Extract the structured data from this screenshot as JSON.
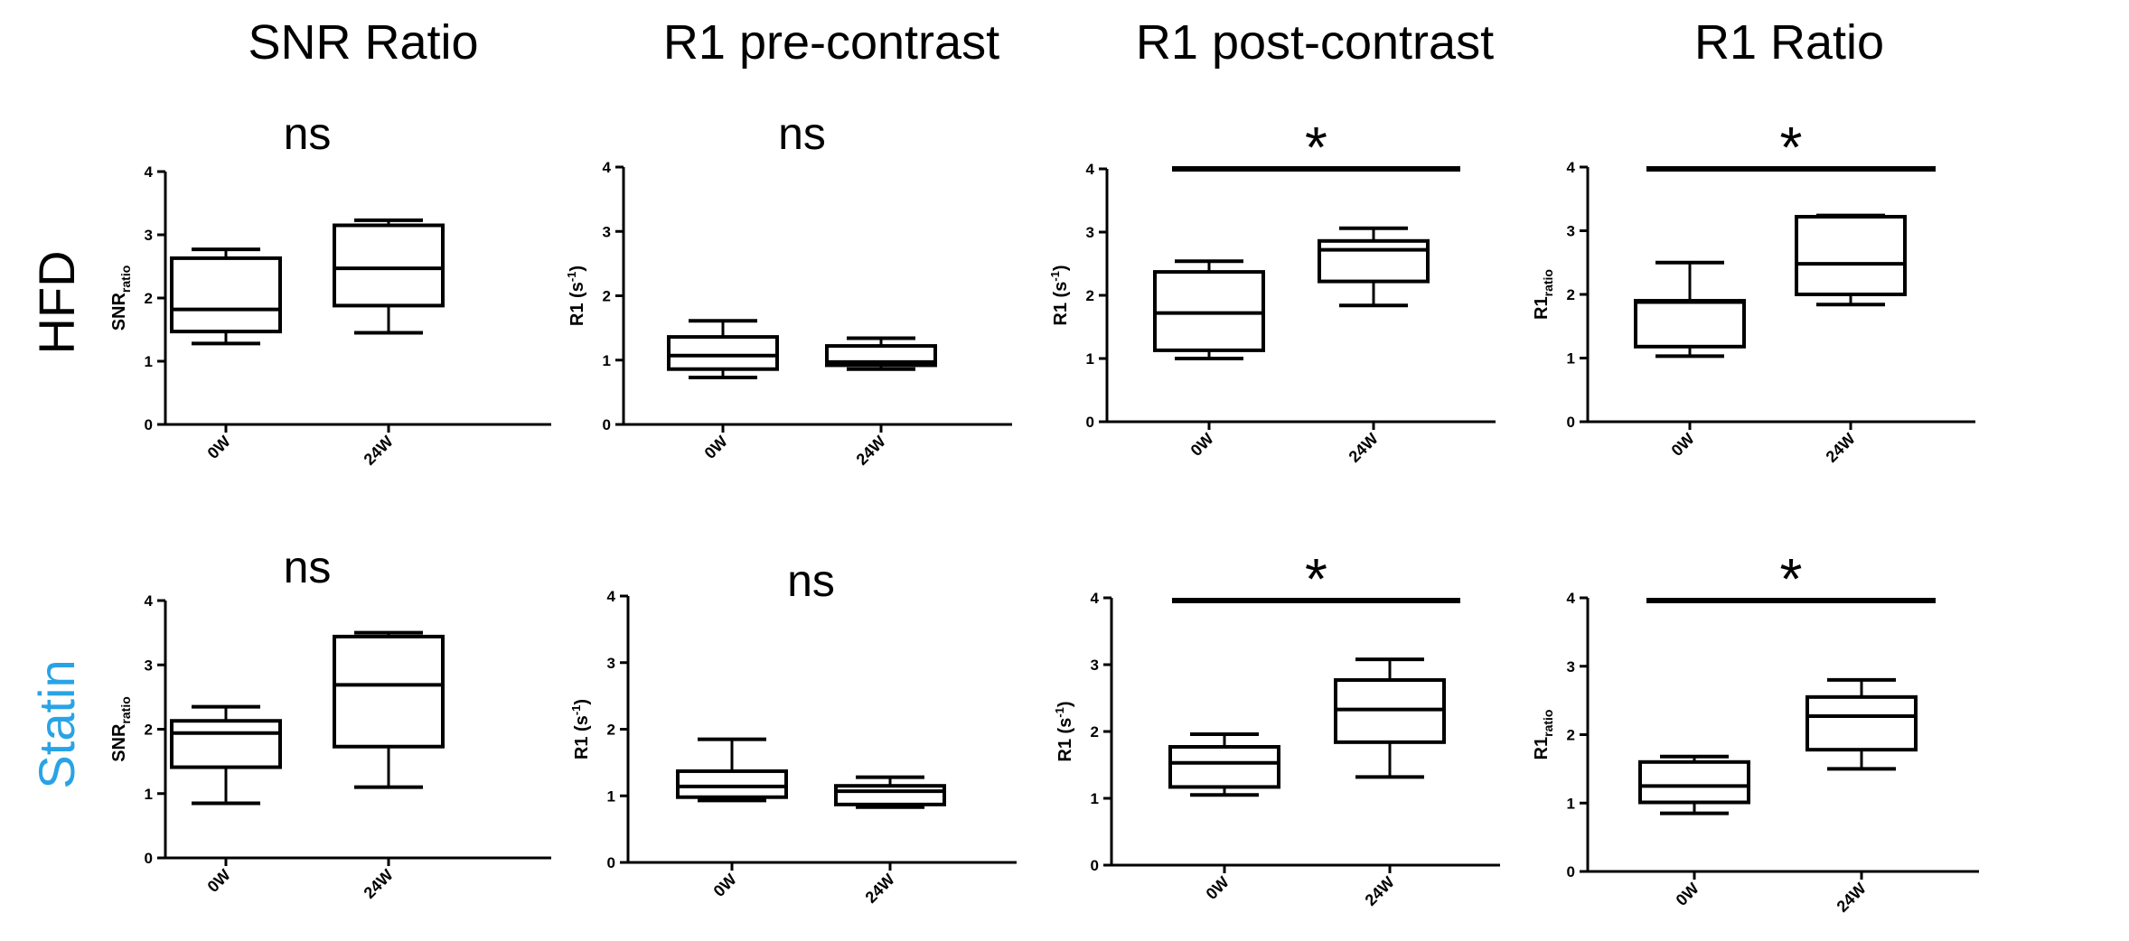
{
  "column_titles": [
    "SNR Ratio",
    "R1 pre-contrast",
    "R1 post-contrast",
    "R1 Ratio"
  ],
  "row_labels": [
    {
      "text": "HFD",
      "color": "#000000"
    },
    {
      "text": "Statin",
      "color": "#29a3e6"
    }
  ],
  "colors": {
    "ink": "#000000",
    "statin_accent": "#29a3e6",
    "background": "#ffffff"
  },
  "chart_data": [
    {
      "type": "box",
      "row": "HFD",
      "column": "SNR Ratio",
      "ylabel": {
        "main": "SNR",
        "sub": "ratio",
        "sup": ""
      },
      "ylim": [
        0,
        4
      ],
      "yticks": [
        "0",
        "1",
        "2",
        "3",
        "4"
      ],
      "categories": [
        "0W",
        "24W"
      ],
      "boxes": [
        {
          "label": "0W",
          "min": 1.28,
          "q1": 1.47,
          "median": 1.82,
          "q3": 2.63,
          "max": 2.77
        },
        {
          "label": "24W",
          "min": 1.45,
          "q1": 1.88,
          "median": 2.47,
          "q3": 3.15,
          "max": 3.23
        }
      ],
      "significance": {
        "text": "ns",
        "bar": false
      }
    },
    {
      "type": "box",
      "row": "HFD",
      "column": "R1 pre-contrast",
      "ylabel": {
        "main": "R1 (s",
        "sub": "",
        "sup": "-1",
        "close": ")"
      },
      "ylim": [
        0,
        4
      ],
      "yticks": [
        "0",
        "1",
        "2",
        "3",
        "4"
      ],
      "categories": [
        "0W",
        "24W"
      ],
      "boxes": [
        {
          "label": "0W",
          "min": 0.73,
          "q1": 0.86,
          "median": 1.07,
          "q3": 1.36,
          "max": 1.61
        },
        {
          "label": "24W",
          "min": 0.86,
          "q1": 0.92,
          "median": 0.97,
          "q3": 1.22,
          "max": 1.34
        }
      ],
      "significance": {
        "text": "ns",
        "bar": false
      }
    },
    {
      "type": "box",
      "row": "HFD",
      "column": "R1 post-contrast",
      "ylabel": {
        "main": "R1 (s",
        "sub": "",
        "sup": "-1",
        "close": ")"
      },
      "ylim": [
        0,
        4
      ],
      "yticks": [
        "0",
        "1",
        "2",
        "3",
        "4"
      ],
      "categories": [
        "0W",
        "24W"
      ],
      "boxes": [
        {
          "label": "0W",
          "min": 1.0,
          "q1": 1.13,
          "median": 1.72,
          "q3": 2.37,
          "max": 2.54
        },
        {
          "label": "24W",
          "min": 1.84,
          "q1": 2.22,
          "median": 2.72,
          "q3": 2.86,
          "max": 3.06
        }
      ],
      "significance": {
        "text": "*",
        "bar": true
      }
    },
    {
      "type": "box",
      "row": "HFD",
      "column": "R1 Ratio",
      "ylabel": {
        "main": "R1",
        "sub": "ratio",
        "sup": ""
      },
      "ylim": [
        0,
        4
      ],
      "yticks": [
        "0",
        "1",
        "2",
        "3",
        "4"
      ],
      "categories": [
        "0W",
        "24W"
      ],
      "boxes": [
        {
          "label": "0W",
          "min": 1.03,
          "q1": 1.18,
          "median": 1.88,
          "q3": 1.9,
          "max": 2.5
        },
        {
          "label": "24W",
          "min": 1.84,
          "q1": 2.0,
          "median": 2.48,
          "q3": 3.22,
          "max": 3.24
        }
      ],
      "significance": {
        "text": "*",
        "bar": true
      }
    },
    {
      "type": "box",
      "row": "Statin",
      "column": "SNR Ratio",
      "ylabel": {
        "main": "SNR",
        "sub": "ratio",
        "sup": ""
      },
      "ylim": [
        0,
        4
      ],
      "yticks": [
        "0",
        "1",
        "2",
        "3",
        "4"
      ],
      "categories": [
        "0W",
        "24W"
      ],
      "boxes": [
        {
          "label": "0W",
          "min": 0.85,
          "q1": 1.41,
          "median": 1.94,
          "q3": 2.13,
          "max": 2.35
        },
        {
          "label": "24W",
          "min": 1.1,
          "q1": 1.73,
          "median": 2.69,
          "q3": 3.44,
          "max": 3.5
        }
      ],
      "significance": {
        "text": "ns",
        "bar": false
      }
    },
    {
      "type": "box",
      "row": "Statin",
      "column": "R1 pre-contrast",
      "ylabel": {
        "main": "R1 (s",
        "sub": "",
        "sup": "-1",
        "close": ")"
      },
      "ylim": [
        0,
        4
      ],
      "yticks": [
        "0",
        "1",
        "2",
        "3",
        "4"
      ],
      "categories": [
        "0W",
        "24W"
      ],
      "boxes": [
        {
          "label": "0W",
          "min": 0.93,
          "q1": 0.98,
          "median": 1.14,
          "q3": 1.37,
          "max": 1.85
        },
        {
          "label": "24W",
          "min": 0.83,
          "q1": 0.87,
          "median": 1.07,
          "q3": 1.15,
          "max": 1.28
        }
      ],
      "significance": {
        "text": "ns",
        "bar": false
      }
    },
    {
      "type": "box",
      "row": "Statin",
      "column": "R1 post-contrast",
      "ylabel": {
        "main": "R1 (s",
        "sub": "",
        "sup": "-1",
        "close": ")"
      },
      "ylim": [
        0,
        4
      ],
      "yticks": [
        "0",
        "1",
        "2",
        "3",
        "4"
      ],
      "categories": [
        "0W",
        "24W"
      ],
      "boxes": [
        {
          "label": "0W",
          "min": 1.05,
          "q1": 1.17,
          "median": 1.53,
          "q3": 1.77,
          "max": 1.96
        },
        {
          "label": "24W",
          "min": 1.32,
          "q1": 1.84,
          "median": 2.33,
          "q3": 2.77,
          "max": 3.08
        }
      ],
      "significance": {
        "text": "*",
        "bar": true
      }
    },
    {
      "type": "box",
      "row": "Statin",
      "column": "R1 Ratio",
      "ylabel": {
        "main": "R1",
        "sub": "ratio",
        "sup": ""
      },
      "ylim": [
        0,
        4
      ],
      "yticks": [
        "0",
        "1",
        "2",
        "3",
        "4"
      ],
      "categories": [
        "0W",
        "24W"
      ],
      "boxes": [
        {
          "label": "0W",
          "min": 0.85,
          "q1": 1.01,
          "median": 1.25,
          "q3": 1.6,
          "max": 1.68
        },
        {
          "label": "24W",
          "min": 1.5,
          "q1": 1.78,
          "median": 2.27,
          "q3": 2.55,
          "max": 2.8
        }
      ],
      "significance": {
        "text": "*",
        "bar": true
      }
    }
  ]
}
